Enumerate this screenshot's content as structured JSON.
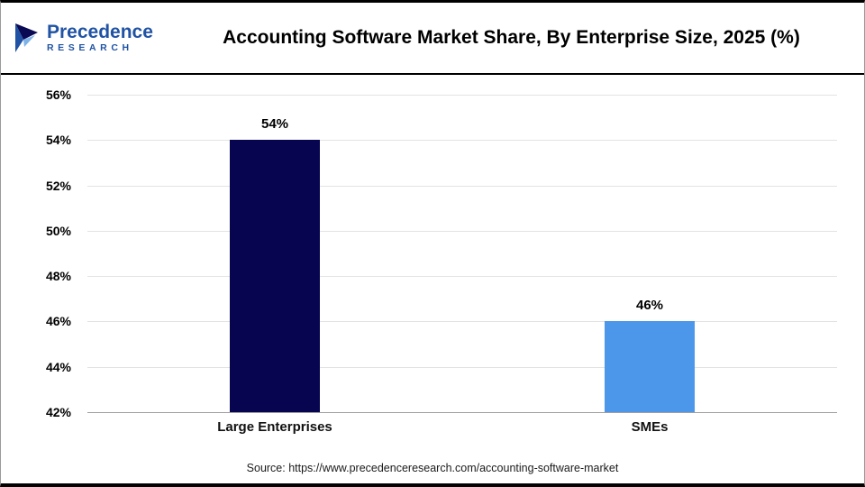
{
  "header": {
    "title": "Accounting Software Market Share, By Enterprise Size, 2025 (%)",
    "logo": {
      "line1": "Precedence",
      "line2": "RESEARCH"
    }
  },
  "chart_data": {
    "type": "bar",
    "title": "Accounting Software Market Share, By Enterprise Size, 2025 (%)",
    "categories": [
      "Large Enterprises",
      "SMEs"
    ],
    "values": [
      54,
      46
    ],
    "value_labels": [
      "54%",
      "46%"
    ],
    "bar_colors": [
      "#070550",
      "#4d97ea"
    ],
    "xlabel": "",
    "ylabel": "",
    "ylim": [
      42,
      56
    ],
    "yticks": [
      56,
      54,
      52,
      50,
      48,
      46,
      44,
      42
    ],
    "ytick_suffix": "%",
    "grid": "horizontal",
    "legend": "none"
  },
  "footer": {
    "source": "Source: https://www.precedenceresearch.com/accounting-software-market"
  }
}
